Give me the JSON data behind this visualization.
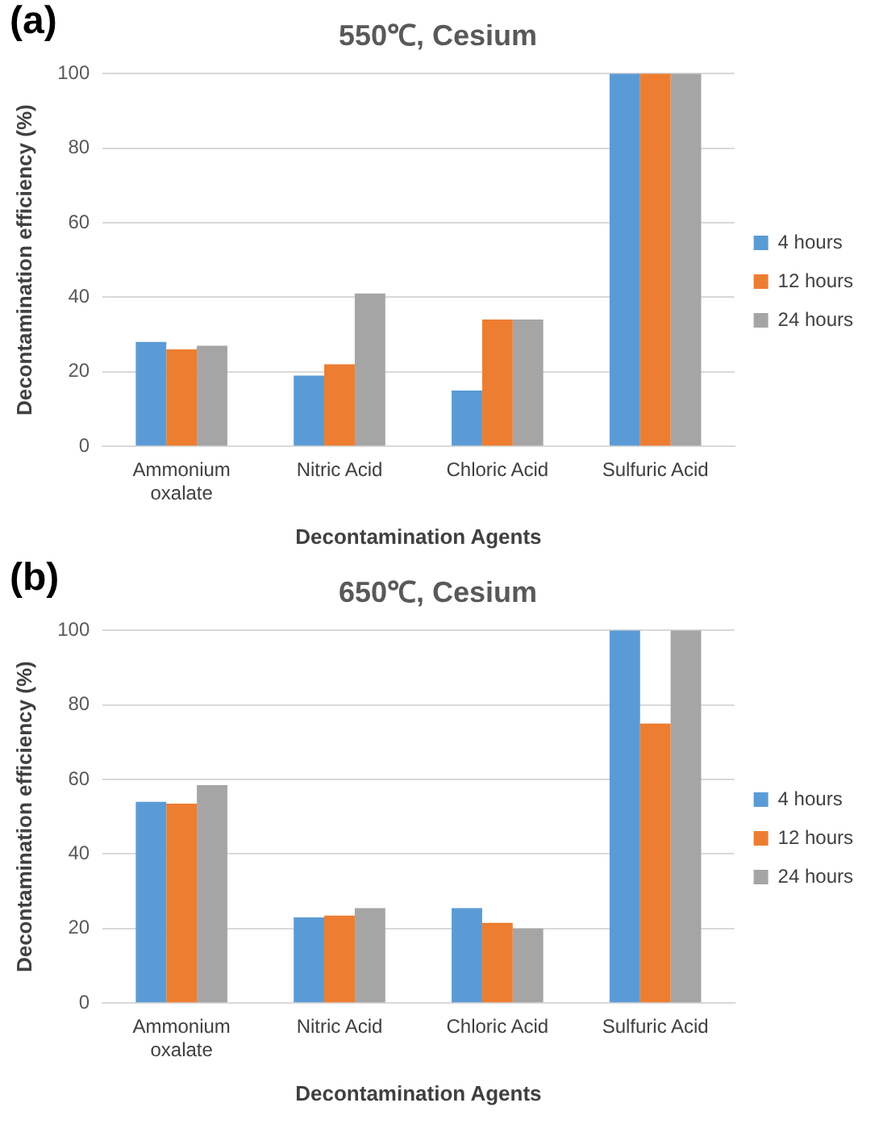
{
  "chart_data": [
    {
      "type": "bar",
      "title": "550℃, Cesium",
      "annotations": [
        "(a)"
      ],
      "xlabel": "Decontamination Agents",
      "ylabel": "Decontamination efficiency (%)",
      "categories": [
        "Ammonium oxalate",
        "Nitric Acid",
        "Chloric Acid",
        "Sulfuric Acid"
      ],
      "series": [
        {
          "name": "4 hours",
          "color": "#5b9bd5",
          "values": [
            28,
            19,
            15,
            100
          ]
        },
        {
          "name": "12 hours",
          "color": "#ed7d31",
          "values": [
            26,
            22,
            34,
            100
          ]
        },
        {
          "name": "24 hours",
          "color": "#a5a5a5",
          "values": [
            27,
            41,
            34,
            100
          ]
        }
      ],
      "ylim": [
        0,
        100
      ],
      "yticks": [
        0,
        20,
        40,
        60,
        80,
        100
      ],
      "grid": "y",
      "legend": "right"
    },
    {
      "type": "bar",
      "title": "650℃, Cesium",
      "annotations": [
        "(b)"
      ],
      "xlabel": "Decontamination Agents",
      "ylabel": "Decontamination efficiency (%)",
      "categories": [
        "Ammonium oxalate",
        "Nitric Acid",
        "Chloric Acid",
        "Sulfuric Acid"
      ],
      "series": [
        {
          "name": "4 hours",
          "color": "#5b9bd5",
          "values": [
            54,
            23,
            25.5,
            100
          ]
        },
        {
          "name": "12 hours",
          "color": "#ed7d31",
          "values": [
            53.5,
            23.5,
            21.5,
            75
          ]
        },
        {
          "name": "24 hours",
          "color": "#a5a5a5",
          "values": [
            58.5,
            25.5,
            20,
            100
          ]
        }
      ],
      "ylim": [
        0,
        100
      ],
      "yticks": [
        0,
        20,
        40,
        60,
        80,
        100
      ],
      "grid": "y",
      "legend": "right"
    }
  ]
}
